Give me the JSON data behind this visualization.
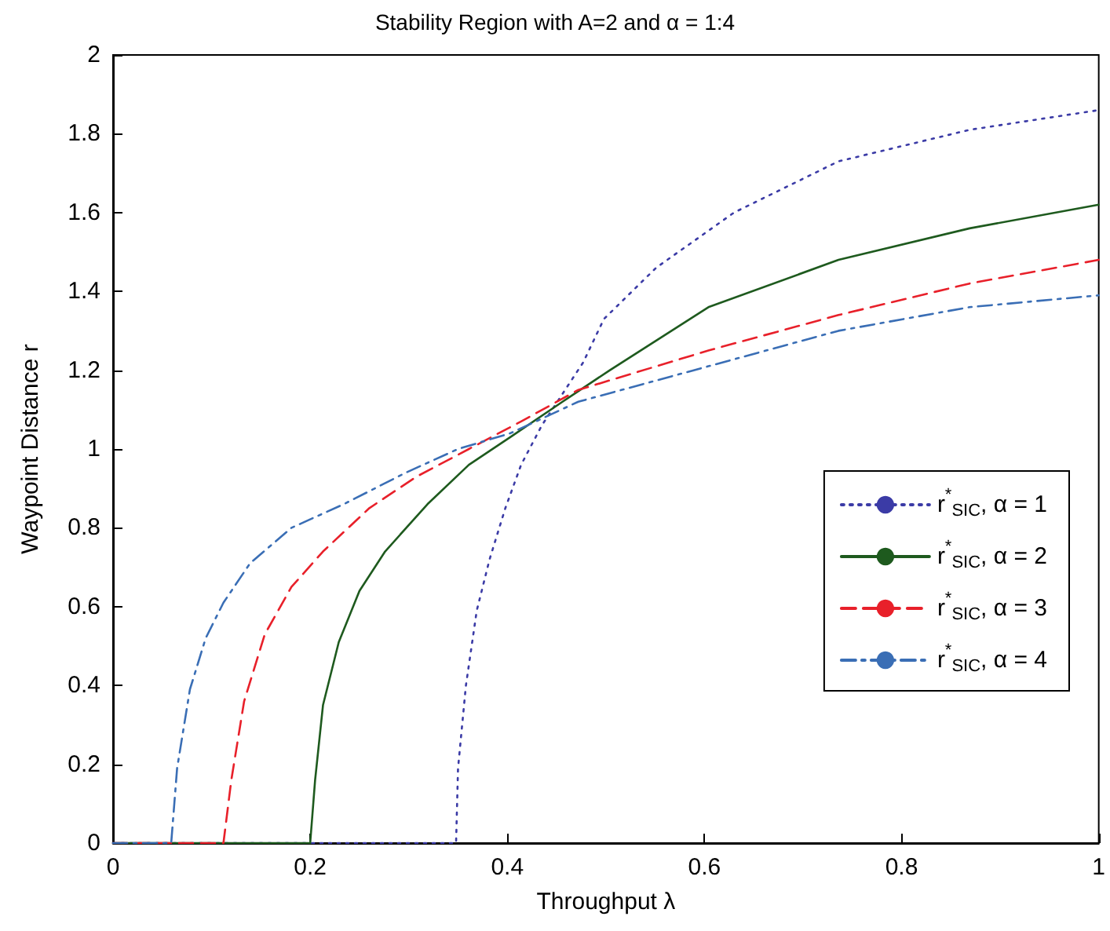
{
  "chart_data": {
    "type": "line",
    "title": "Stability Region with A=2 and α = 1:4",
    "xlabel": "Throughput λ",
    "ylabel": "Waypoint Distance r",
    "xlim": [
      0,
      1
    ],
    "xticks": [
      0,
      0.2,
      0.4,
      0.6,
      0.8,
      1
    ],
    "ylim": [
      0,
      2
    ],
    "yticks": [
      0,
      0.2,
      0.4,
      0.6,
      0.8,
      1,
      1.2,
      1.4,
      1.6,
      1.8,
      2
    ],
    "grid": false,
    "legend": "right",
    "marker": "none",
    "series": [
      {
        "name": "r$^{*}$$_{SIC}$, α = 1",
        "color": "#3b3ba6",
        "line_style": "dotted",
        "x": [
          0,
          0.348,
          0.35,
          0.358,
          0.369,
          0.382,
          0.398,
          0.414,
          0.435,
          0.456,
          0.477,
          0.498,
          0.551,
          0.63,
          0.736,
          0.869,
          1.0
        ],
        "values": [
          0,
          0,
          0.19,
          0.4,
          0.59,
          0.72,
          0.85,
          0.96,
          1.06,
          1.14,
          1.22,
          1.33,
          1.46,
          1.6,
          1.73,
          1.81,
          1.86
        ]
      },
      {
        "name": "r$^{*}$$_{SIC}$, α = 2",
        "color": "#1e5a1e",
        "line_style": "solid",
        "x": [
          0,
          0.2,
          0.205,
          0.213,
          0.229,
          0.25,
          0.276,
          0.319,
          0.361,
          0.403,
          0.456,
          0.504,
          0.604,
          0.736,
          0.869,
          1.0
        ],
        "values": [
          0,
          0,
          0.16,
          0.35,
          0.51,
          0.64,
          0.74,
          0.86,
          0.96,
          1.03,
          1.12,
          1.2,
          1.36,
          1.48,
          1.56,
          1.62
        ]
      },
      {
        "name": "r$^{*}$$_{SIC}$, α = 3",
        "color": "#e8202a",
        "line_style": "dashed",
        "x": [
          0,
          0.112,
          0.12,
          0.133,
          0.154,
          0.181,
          0.213,
          0.26,
          0.308,
          0.361,
          0.414,
          0.472,
          0.604,
          0.736,
          0.869,
          1.0
        ],
        "values": [
          0,
          0,
          0.16,
          0.36,
          0.53,
          0.65,
          0.74,
          0.85,
          0.93,
          1.0,
          1.07,
          1.15,
          1.25,
          1.34,
          1.42,
          1.48
        ]
      },
      {
        "name": "r$^{*}$$_{SIC}$, α = 4",
        "color": "#3a6eb5",
        "line_style": "dashdot",
        "x": [
          0,
          0.059,
          0.065,
          0.078,
          0.094,
          0.112,
          0.139,
          0.181,
          0.234,
          0.297,
          0.35,
          0.403,
          0.472,
          0.604,
          0.736,
          0.869,
          1.0
        ],
        "values": [
          0,
          0,
          0.19,
          0.39,
          0.52,
          0.61,
          0.71,
          0.8,
          0.86,
          0.94,
          1.0,
          1.04,
          1.12,
          1.21,
          1.3,
          1.36,
          1.39
        ]
      }
    ]
  }
}
